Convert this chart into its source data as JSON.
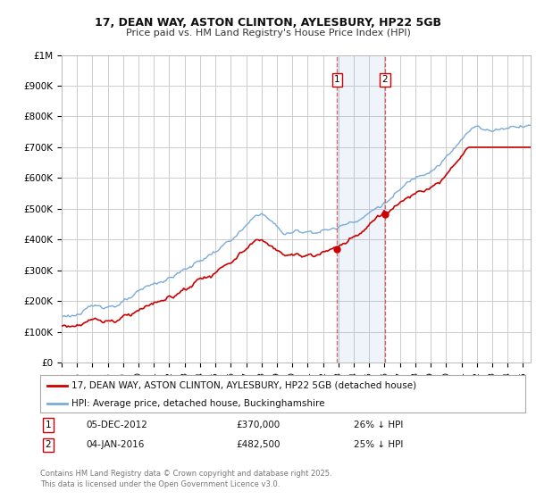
{
  "title_line1": "17, DEAN WAY, ASTON CLINTON, AYLESBURY, HP22 5GB",
  "title_line2": "Price paid vs. HM Land Registry's House Price Index (HPI)",
  "ylim": [
    0,
    1000000
  ],
  "xlim_start": 1995,
  "xlim_end": 2025.5,
  "yticks": [
    0,
    100000,
    200000,
    300000,
    400000,
    500000,
    600000,
    700000,
    800000,
    900000,
    1000000
  ],
  "ylabels": [
    "£0",
    "£100K",
    "£200K",
    "£300K",
    "£400K",
    "£500K",
    "£600K",
    "£700K",
    "£800K",
    "£900K",
    "£1M"
  ],
  "purchase1_date": "05-DEC-2012",
  "purchase1_price": 370000,
  "purchase1_year": 2012.92,
  "purchase2_date": "04-JAN-2016",
  "purchase2_price": 482500,
  "purchase2_year": 2016.02,
  "hpi_color": "#7aabda",
  "price_color": "#cc0000",
  "background_color": "#ffffff",
  "grid_color": "#cccccc",
  "legend_label_price": "17, DEAN WAY, ASTON CLINTON, AYLESBURY, HP22 5GB (detached house)",
  "legend_label_hpi": "HPI: Average price, detached house, Buckinghamshire",
  "purchase1_hpi_diff": "26% ↓ HPI",
  "purchase2_hpi_diff": "25% ↓ HPI",
  "footnote": "Contains HM Land Registry data © Crown copyright and database right 2025.\nThis data is licensed under the Open Government Licence v3.0."
}
